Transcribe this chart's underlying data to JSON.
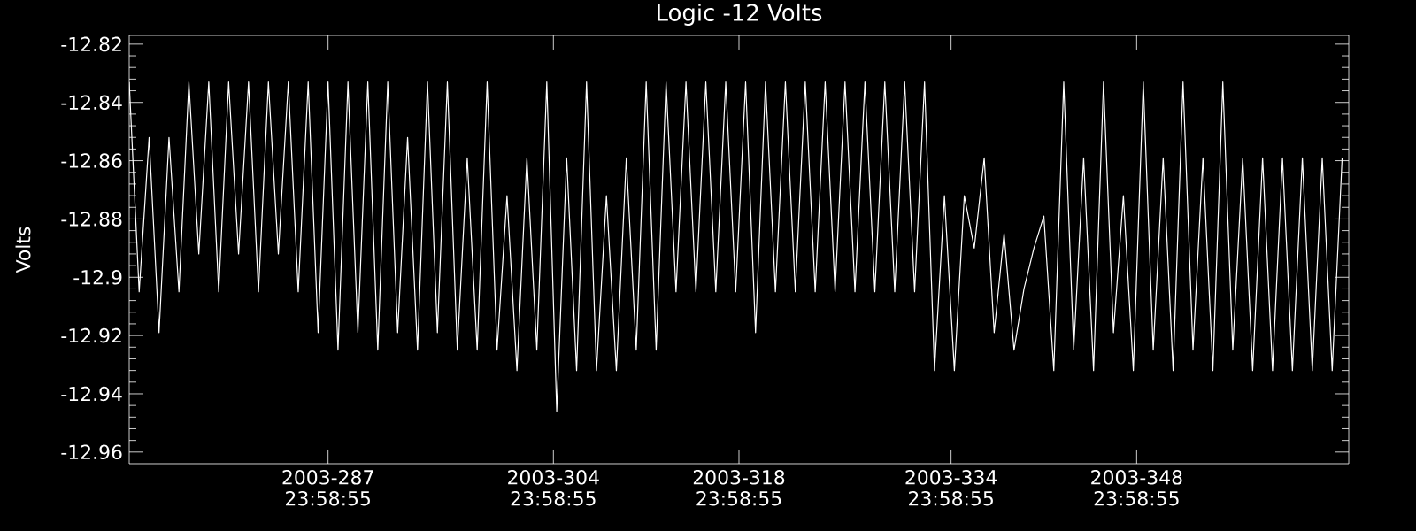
{
  "chart_data": {
    "type": "line",
    "title": "Logic -12 Volts",
    "ylabel": "Volts",
    "xlim": [
      "2003-09-30T00:00",
      "2003-12-31T00:00"
    ],
    "ylim": [
      -12.964,
      -12.817
    ],
    "xticks": [
      {
        "value": "2003-10-14T23:58:55",
        "label": "2003-287 23:58:55"
      },
      {
        "value": "2003-10-31T23:58:55",
        "label": "2003-304 23:58:55"
      },
      {
        "value": "2003-11-14T23:58:55",
        "label": "2003-318 23:58:55"
      },
      {
        "value": "2003-11-30T23:58:55",
        "label": "2003-334 23:58:55"
      },
      {
        "value": "2003-12-14T23:58:55",
        "label": "2003-348 23:58:55"
      }
    ],
    "yticks": [
      -12.96,
      -12.94,
      -12.92,
      -12.9,
      -12.88,
      -12.86,
      -12.84,
      -12.82
    ],
    "grid": false,
    "marker": "none",
    "line_style": "solid",
    "series": [
      {
        "color": "#ffffff",
        "x": [
          "2003-09-30T00:00",
          "2003-09-30T18:00",
          "2003-10-01T12:00",
          "2003-10-02T06:00",
          "2003-10-03T00:00",
          "2003-10-03T18:00",
          "2003-10-04T12:00",
          "2003-10-05T06:00",
          "2003-10-06T00:00",
          "2003-10-06T18:00",
          "2003-10-07T12:00",
          "2003-10-08T06:00",
          "2003-10-09T00:00",
          "2003-10-09T18:00",
          "2003-10-10T12:00",
          "2003-10-11T06:00",
          "2003-10-12T00:00",
          "2003-10-12T18:00",
          "2003-10-13T12:00",
          "2003-10-14T06:00",
          "2003-10-15T00:00",
          "2003-10-15T18:00",
          "2003-10-16T12:00",
          "2003-10-17T06:00",
          "2003-10-18T00:00",
          "2003-10-18T18:00",
          "2003-10-19T12:00",
          "2003-10-20T06:00",
          "2003-10-21T00:00",
          "2003-10-21T18:00",
          "2003-10-22T12:00",
          "2003-10-23T06:00",
          "2003-10-24T00:00",
          "2003-10-24T18:00",
          "2003-10-25T12:00",
          "2003-10-26T06:00",
          "2003-10-27T00:00",
          "2003-10-27T18:00",
          "2003-10-28T12:00",
          "2003-10-29T06:00",
          "2003-10-30T00:00",
          "2003-10-30T18:00",
          "2003-10-31T12:00",
          "2003-11-01T06:00",
          "2003-11-02T00:00",
          "2003-11-02T18:00",
          "2003-11-03T12:00",
          "2003-11-04T06:00",
          "2003-11-05T00:00",
          "2003-11-05T18:00",
          "2003-11-06T12:00",
          "2003-11-07T06:00",
          "2003-11-08T00:00",
          "2003-11-08T18:00",
          "2003-11-09T12:00",
          "2003-11-10T06:00",
          "2003-11-11T00:00",
          "2003-11-11T18:00",
          "2003-11-12T12:00",
          "2003-11-13T06:00",
          "2003-11-14T00:00",
          "2003-11-14T18:00",
          "2003-11-15T12:00",
          "2003-11-16T06:00",
          "2003-11-17T00:00",
          "2003-11-17T18:00",
          "2003-11-18T12:00",
          "2003-11-19T06:00",
          "2003-11-20T00:00",
          "2003-11-20T18:00",
          "2003-11-21T12:00",
          "2003-11-22T06:00",
          "2003-11-23T00:00",
          "2003-11-23T18:00",
          "2003-11-24T12:00",
          "2003-11-25T06:00",
          "2003-11-26T00:00",
          "2003-11-26T18:00",
          "2003-11-27T12:00",
          "2003-11-28T06:00",
          "2003-11-29T00:00",
          "2003-11-29T18:00",
          "2003-11-30T12:00",
          "2003-12-01T06:00",
          "2003-12-02T00:00",
          "2003-12-02T18:00",
          "2003-12-03T12:00",
          "2003-12-04T06:00",
          "2003-12-05T00:00",
          "2003-12-05T18:00",
          "2003-12-06T12:00",
          "2003-12-07T06:00",
          "2003-12-08T00:00",
          "2003-12-08T18:00",
          "2003-12-09T12:00",
          "2003-12-10T06:00",
          "2003-12-11T00:00",
          "2003-12-11T18:00",
          "2003-12-12T12:00",
          "2003-12-13T06:00",
          "2003-12-14T00:00",
          "2003-12-14T18:00",
          "2003-12-15T12:00",
          "2003-12-16T06:00",
          "2003-12-17T00:00",
          "2003-12-17T18:00",
          "2003-12-18T12:00",
          "2003-12-19T06:00",
          "2003-12-20T00:00",
          "2003-12-20T18:00",
          "2003-12-21T12:00",
          "2003-12-22T06:00",
          "2003-12-23T00:00",
          "2003-12-23T18:00",
          "2003-12-24T12:00",
          "2003-12-25T06:00",
          "2003-12-26T00:00",
          "2003-12-26T18:00",
          "2003-12-27T12:00",
          "2003-12-28T06:00",
          "2003-12-29T00:00",
          "2003-12-29T18:00",
          "2003-12-30T12:00"
        ],
        "values": [
          -12.833,
          -12.905,
          -12.852,
          -12.919,
          -12.852,
          -12.905,
          -12.833,
          -12.892,
          -12.833,
          -12.905,
          -12.833,
          -12.892,
          -12.833,
          -12.905,
          -12.833,
          -12.892,
          -12.833,
          -12.905,
          -12.833,
          -12.919,
          -12.833,
          -12.925,
          -12.833,
          -12.919,
          -12.833,
          -12.925,
          -12.833,
          -12.919,
          -12.852,
          -12.925,
          -12.833,
          -12.919,
          -12.833,
          -12.925,
          -12.859,
          -12.925,
          -12.833,
          -12.925,
          -12.872,
          -12.932,
          -12.859,
          -12.925,
          -12.833,
          -12.946,
          -12.859,
          -12.932,
          -12.833,
          -12.932,
          -12.872,
          -12.932,
          -12.859,
          -12.925,
          -12.833,
          -12.925,
          -12.833,
          -12.905,
          -12.833,
          -12.905,
          -12.833,
          -12.905,
          -12.833,
          -12.905,
          -12.833,
          -12.919,
          -12.833,
          -12.905,
          -12.833,
          -12.905,
          -12.833,
          -12.905,
          -12.833,
          -12.905,
          -12.833,
          -12.905,
          -12.833,
          -12.905,
          -12.833,
          -12.905,
          -12.833,
          -12.905,
          -12.833,
          -12.932,
          -12.872,
          -12.932,
          -12.872,
          -12.89,
          -12.859,
          -12.919,
          -12.885,
          -12.925,
          -12.904,
          -12.89,
          -12.879,
          -12.932,
          -12.833,
          -12.925,
          -12.859,
          -12.932,
          -12.833,
          -12.919,
          -12.872,
          -12.932,
          -12.833,
          -12.925,
          -12.859,
          -12.932,
          -12.833,
          -12.925,
          -12.859,
          -12.932,
          -12.833,
          -12.925,
          -12.859,
          -12.932,
          -12.859,
          -12.932,
          -12.859,
          -12.932,
          -12.859,
          -12.932,
          -12.859,
          -12.932,
          -12.859
        ]
      }
    ]
  }
}
